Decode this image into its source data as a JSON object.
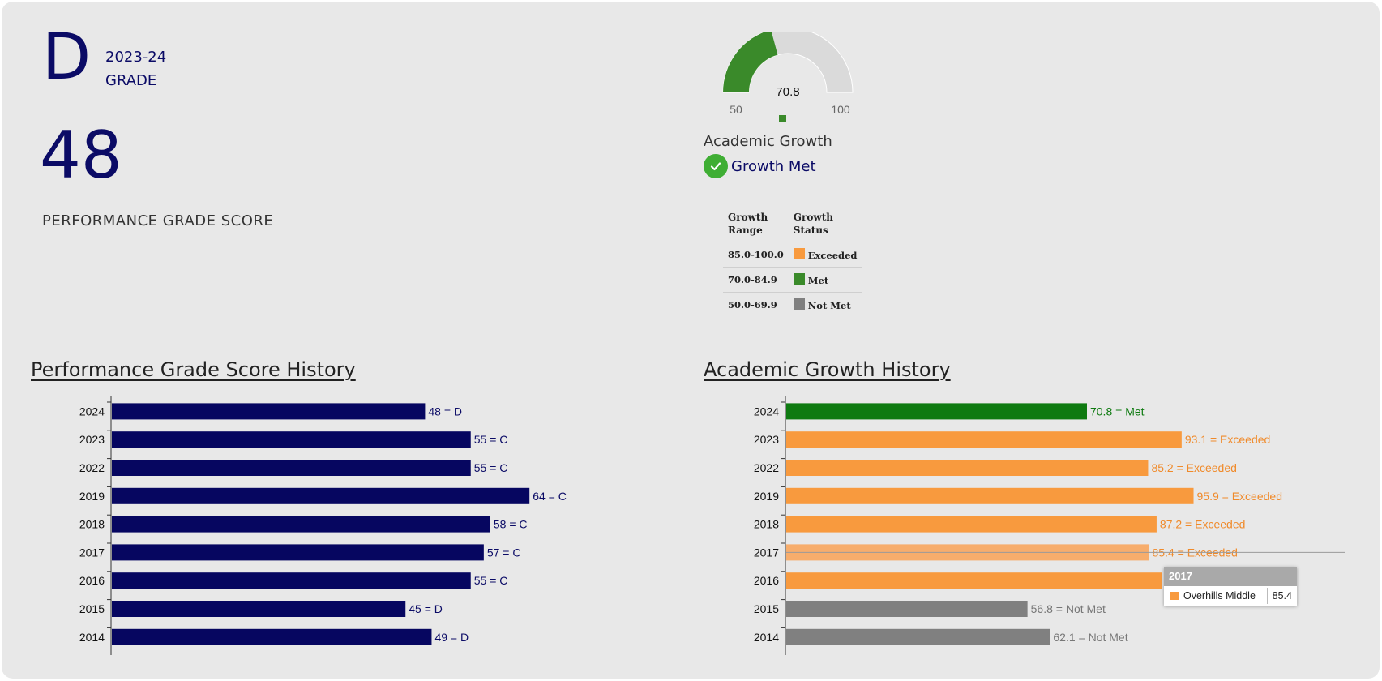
{
  "summary": {
    "grade_letter": "D",
    "grade_year": "2023-24",
    "grade_caption": "GRADE",
    "score": "48",
    "score_caption": "PERFORMANCE GRADE SCORE"
  },
  "gauge": {
    "value": 70.8,
    "value_label": "70.8",
    "min": 50,
    "max": 100,
    "min_label": "50",
    "max_label": "100",
    "fill_color": "#3a8a2a",
    "track_color": "#dadada"
  },
  "academic_growth": {
    "title": "Academic Growth",
    "status": "Growth Met",
    "status_icon": "check-circle-icon",
    "status_color": "#3fae34"
  },
  "legend": {
    "headers": [
      "Growth Range",
      "Growth Status"
    ],
    "header_range_lines": [
      "Growth",
      "Range"
    ],
    "header_status_lines": [
      "Growth",
      "Status"
    ],
    "rows": [
      {
        "range": "85.0-100.0",
        "status": "Exceeded",
        "color": "#f89a3e"
      },
      {
        "range": "70.0-84.9",
        "status": "Met",
        "color": "#3a8a2a"
      },
      {
        "range": "50.0-69.9",
        "status": "Not Met",
        "color": "#808080"
      }
    ]
  },
  "sections": {
    "pgs_title": "Performance Grade Score History",
    "agh_title": "Academic Growth History"
  },
  "chart_data": [
    {
      "type": "bar",
      "orientation": "horizontal",
      "title": "Performance Grade Score History",
      "categories": [
        "2024",
        "2023",
        "2022",
        "2019",
        "2018",
        "2017",
        "2016",
        "2015",
        "2014"
      ],
      "values": [
        48,
        55,
        55,
        64,
        58,
        57,
        55,
        45,
        49
      ],
      "labels": [
        "48 = D",
        "55 = C",
        "55 = C",
        "64 = C",
        "58 = C",
        "57 = C",
        "55 = C",
        "45 = D",
        "49 = D"
      ],
      "xlim": [
        0,
        100
      ],
      "color": "#060660",
      "label_color": "#0b0b66"
    },
    {
      "type": "bar",
      "orientation": "horizontal",
      "title": "Academic Growth History",
      "categories": [
        "2024",
        "2023",
        "2022",
        "2019",
        "2018",
        "2017",
        "2016",
        "2015",
        "2014"
      ],
      "values": [
        70.8,
        93.1,
        85.2,
        95.9,
        87.2,
        85.4,
        88.4,
        56.8,
        62.1
      ],
      "labels": [
        "70.8 = Met",
        "93.1 = Exceeded",
        "85.2 = Exceeded",
        "95.9 = Exceeded",
        "87.2 = Exceeded",
        "85.4 = Exceeded",
        "",
        "56.8 = Not Met",
        "62.1 = Not Met"
      ],
      "colors": [
        "#0e7a10",
        "#f89a3e",
        "#f89a3e",
        "#f89a3e",
        "#f89a3e",
        "#f7ad6c",
        "#f89a3e",
        "#808080",
        "#808080"
      ],
      "label_colors": [
        "#0e7a10",
        "#f08a2a",
        "#f08a2a",
        "#f08a2a",
        "#f08a2a",
        "#f08a2a",
        "#f08a2a",
        "#777777",
        "#777777"
      ],
      "xlim": [
        0,
        100
      ],
      "highlighted_category": "2017"
    }
  ],
  "tooltip": {
    "year": "2017",
    "school": "Overhills Middle",
    "value": "85.4",
    "color": "#f89a3e"
  }
}
